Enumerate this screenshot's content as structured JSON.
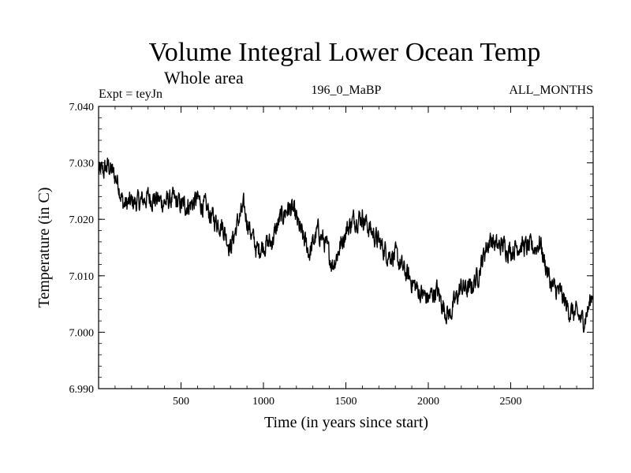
{
  "chart_data": {
    "type": "line",
    "title": "Volume Integral Lower Ocean Temp",
    "subtitle": "Whole area",
    "header_left": "Expt = teyJn",
    "header_center": "196_0_MaBP",
    "header_right": "ALL_MONTHS",
    "xlabel": "Time (in years since start)",
    "ylabel": "Temperature (in C)",
    "xlim": [
      0,
      3000
    ],
    "ylim": [
      6.99,
      7.04
    ],
    "xticks": [
      500,
      1000,
      1500,
      2000,
      2500
    ],
    "xtick_labels": [
      "500",
      "1000",
      "1500",
      "2000",
      "2500"
    ],
    "yticks": [
      6.99,
      7.0,
      7.01,
      7.02,
      7.03,
      7.04
    ],
    "ytick_labels": [
      "6.990",
      "7.000",
      "7.010",
      "7.020",
      "7.030",
      "7.040"
    ],
    "line_color": "#000000",
    "series": [
      {
        "name": "temperature",
        "x": [
          0,
          30,
          60,
          90,
          120,
          150,
          200,
          250,
          300,
          350,
          400,
          450,
          500,
          550,
          600,
          650,
          700,
          750,
          800,
          850,
          880,
          920,
          960,
          1000,
          1050,
          1100,
          1150,
          1180,
          1230,
          1280,
          1330,
          1370,
          1420,
          1450,
          1500,
          1550,
          1600,
          1640,
          1700,
          1750,
          1800,
          1850,
          1900,
          1950,
          2000,
          2050,
          2100,
          2130,
          2170,
          2200,
          2250,
          2300,
          2350,
          2380,
          2420,
          2450,
          2500,
          2550,
          2600,
          2650,
          2680,
          2700,
          2750,
          2800,
          2850,
          2900,
          2940,
          2970,
          3000
        ],
        "values": [
          7.0285,
          7.0285,
          7.0295,
          7.028,
          7.0265,
          7.0225,
          7.023,
          7.023,
          7.024,
          7.0235,
          7.023,
          7.0235,
          7.0225,
          7.0225,
          7.0235,
          7.022,
          7.02,
          7.019,
          7.015,
          7.02,
          7.022,
          7.018,
          7.0145,
          7.0155,
          7.016,
          7.02,
          7.022,
          7.0215,
          7.0175,
          7.014,
          7.018,
          7.016,
          7.012,
          7.014,
          7.018,
          7.02,
          7.0205,
          7.0185,
          7.016,
          7.014,
          7.0135,
          7.011,
          7.009,
          7.007,
          7.006,
          7.0075,
          7.004,
          7.003,
          7.006,
          7.008,
          7.0075,
          7.01,
          7.015,
          7.0165,
          7.015,
          7.0155,
          7.0145,
          7.0155,
          7.015,
          7.015,
          7.016,
          7.013,
          7.008,
          7.007,
          7.004,
          7.003,
          7.002,
          7.004,
          7.0075
        ]
      }
    ]
  }
}
